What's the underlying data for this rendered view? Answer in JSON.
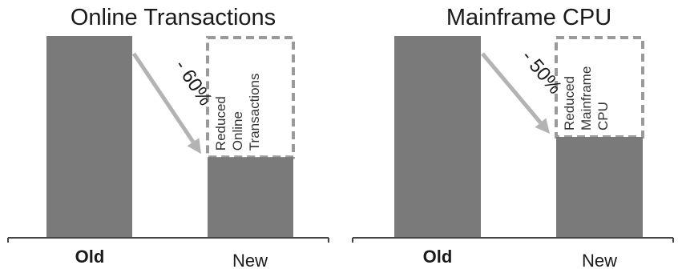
{
  "chart_data": [
    {
      "type": "bar",
      "title": "Online Transactions",
      "categories": [
        "Old",
        "New"
      ],
      "values": [
        100,
        40
      ],
      "ylim": [
        0,
        100
      ],
      "grid": false,
      "annotation": "- 60%",
      "reduced_label": [
        "Reduced",
        "Online",
        "Transactions"
      ],
      "category_styles": [
        "bold",
        "normal"
      ]
    },
    {
      "type": "bar",
      "title": "Mainframe CPU",
      "categories": [
        "Old",
        "New"
      ],
      "values": [
        100,
        50
      ],
      "ylim": [
        0,
        100
      ],
      "grid": false,
      "annotation": "- 50%",
      "reduced_label": [
        "Reduced",
        "Mainframe",
        "CPU"
      ],
      "category_styles": [
        "bold",
        "normal"
      ]
    }
  ],
  "colors": {
    "bar": "#7a7a7a",
    "ghost_outline": "#9a9a9a",
    "arrow": "#b3b3b3"
  }
}
